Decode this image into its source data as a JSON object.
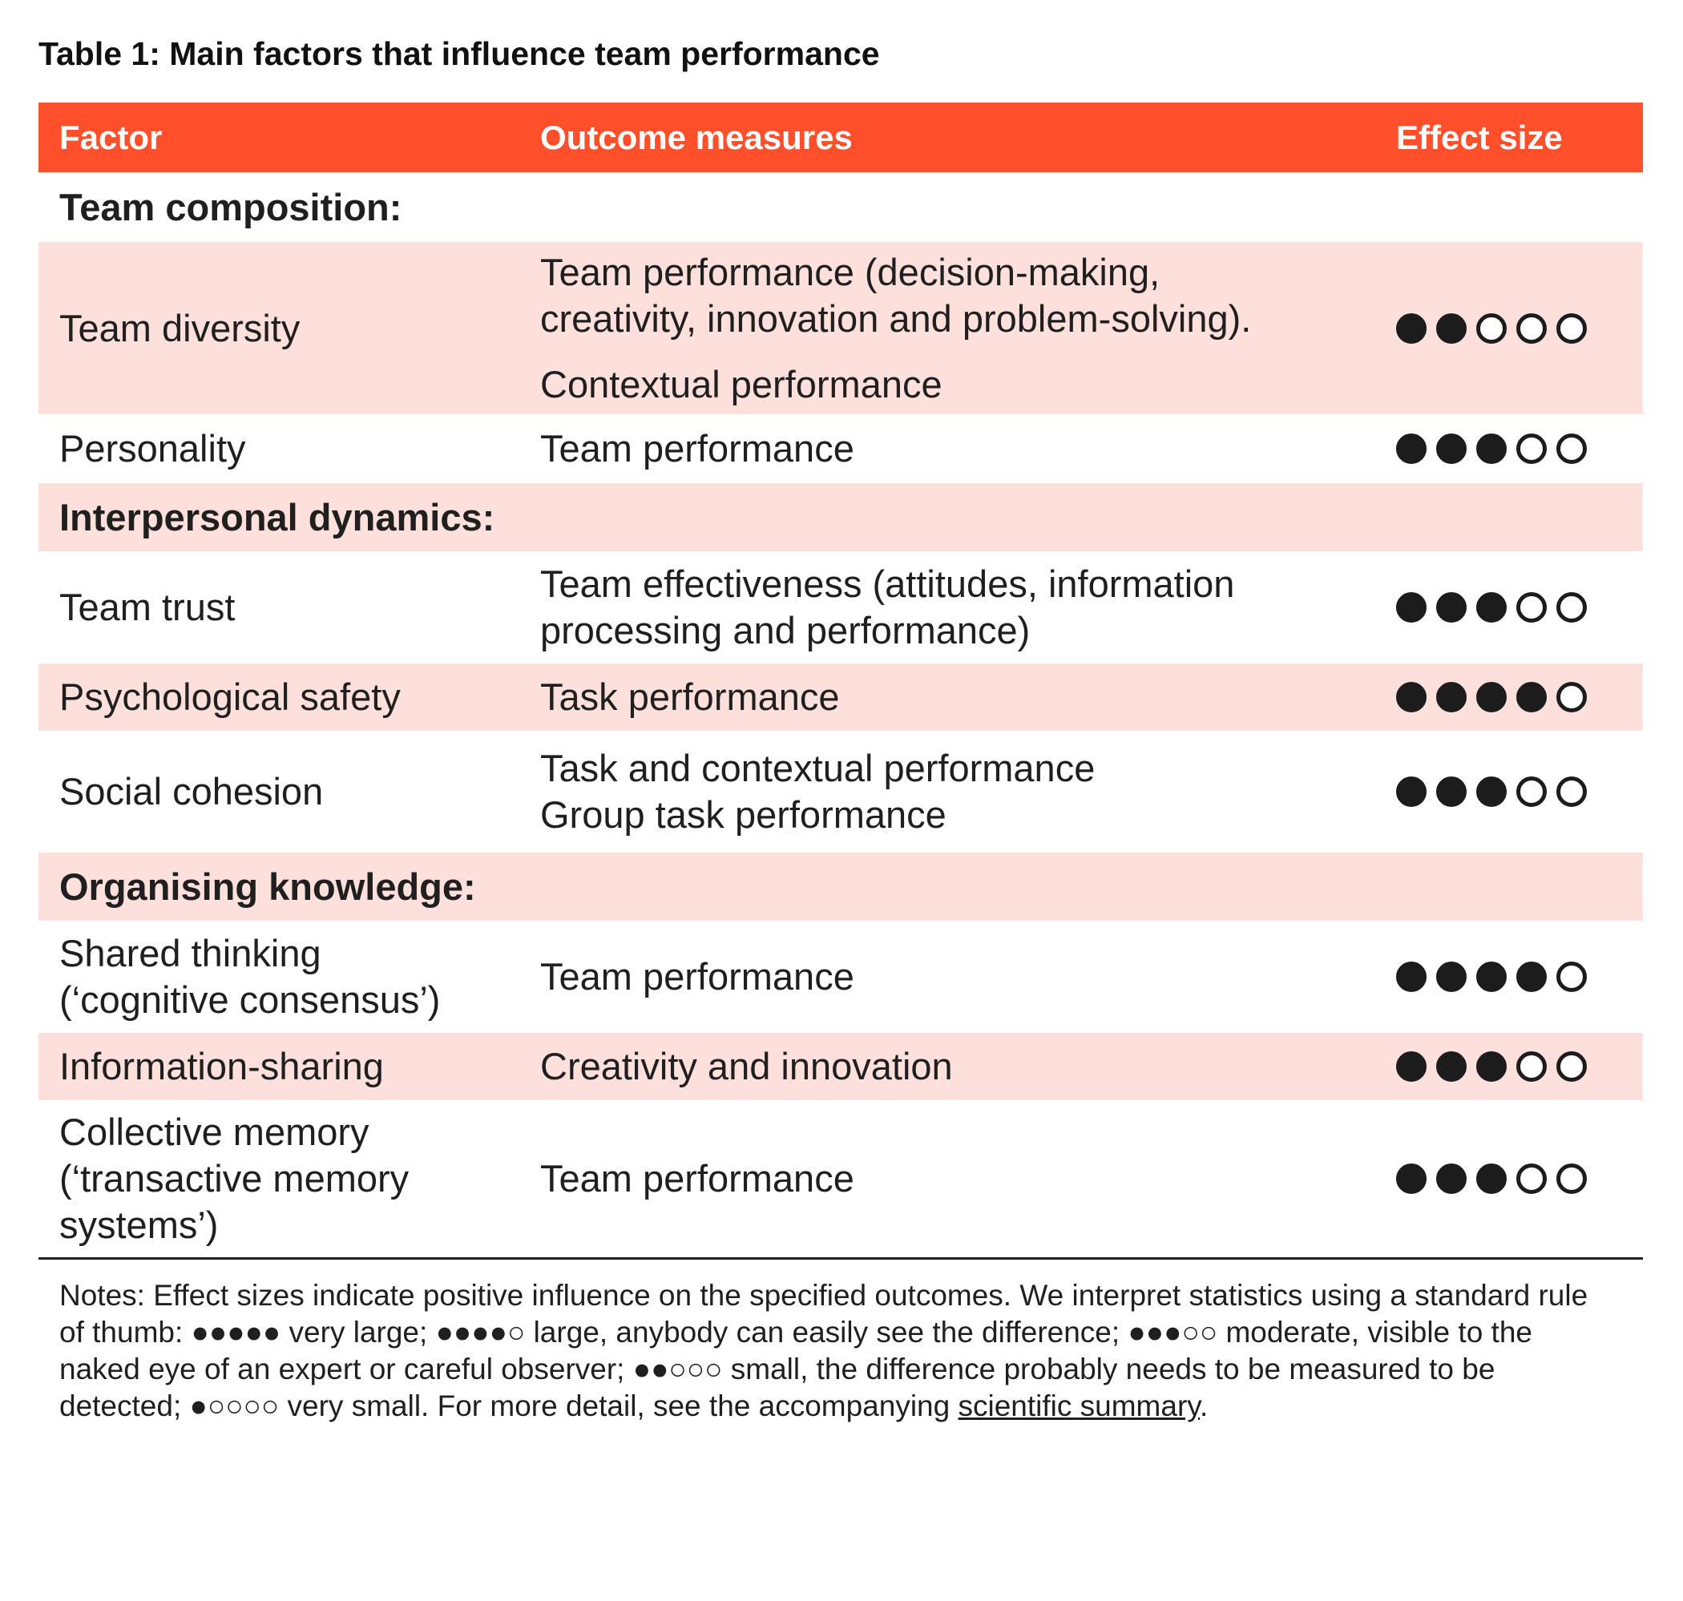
{
  "title": "Table 1: Main factors that influence team performance",
  "columns": {
    "factor": "Factor",
    "outcome": "Outcome measures",
    "effect": "Effect size"
  },
  "colors": {
    "header_bg": "#ff4f2b",
    "stripe_bg": "#fde0dc",
    "dot": "#1c1c1c"
  },
  "rows": [
    {
      "kind": "section",
      "label": "Team composition:",
      "shaded": false
    },
    {
      "kind": "data",
      "factor": [
        "Team diversity"
      ],
      "outcomes": [
        [
          "Team performance (decision-making,",
          "creativity, innovation and problem-solving)."
        ],
        [
          "Contextual performance"
        ]
      ],
      "effect": 2,
      "shaded": true
    },
    {
      "kind": "data",
      "factor": [
        "Personality"
      ],
      "outcomes": [
        [
          "Team performance"
        ]
      ],
      "effect": 3,
      "shaded": false
    },
    {
      "kind": "section",
      "label": "Interpersonal dynamics:",
      "shaded": true
    },
    {
      "kind": "data",
      "factor": [
        "Team trust"
      ],
      "outcomes": [
        [
          "Team effectiveness (attitudes, information",
          "processing and performance)"
        ]
      ],
      "effect": 3,
      "shaded": false
    },
    {
      "kind": "data",
      "factor": [
        "Psychological safety"
      ],
      "outcomes": [
        [
          "Task performance"
        ]
      ],
      "effect": 4,
      "shaded": true
    },
    {
      "kind": "data",
      "factor": [
        "Social cohesion"
      ],
      "outcomes": [
        [
          "Task and contextual performance"
        ],
        [
          "Group task performance"
        ]
      ],
      "effect": 3,
      "shaded": false,
      "tight": true
    },
    {
      "kind": "section",
      "label": "Organising knowledge:",
      "shaded": true
    },
    {
      "kind": "data",
      "factor": [
        "Shared thinking",
        "(‘cognitive consensus’)"
      ],
      "outcomes": [
        [
          "Team performance"
        ]
      ],
      "effect": 4,
      "shaded": false
    },
    {
      "kind": "data",
      "factor": [
        "Information-sharing"
      ],
      "outcomes": [
        [
          "Creativity and innovation"
        ]
      ],
      "effect": 3,
      "shaded": true
    },
    {
      "kind": "data",
      "factor": [
        "Collective memory",
        "(‘transactive memory",
        "systems’)"
      ],
      "outcomes": [
        [
          "Team performance"
        ]
      ],
      "effect": 3,
      "shaded": false
    }
  ],
  "effect_scale_max": 5,
  "notes": {
    "text": "Notes: Effect sizes indicate positive influence on the specified outcomes. We interpret statistics using a standard rule of thumb: ●●●●● very large; ●●●●○ large, anybody can easily see the difference; ●●●○○ moderate, visible to the naked eye of an expert or careful observer; ●●○○○ small, the difference probably needs to be measured to be detected; ●○○○○ very small. For more detail, see the accompanying ",
    "link": "scientific summary",
    "end": "."
  }
}
